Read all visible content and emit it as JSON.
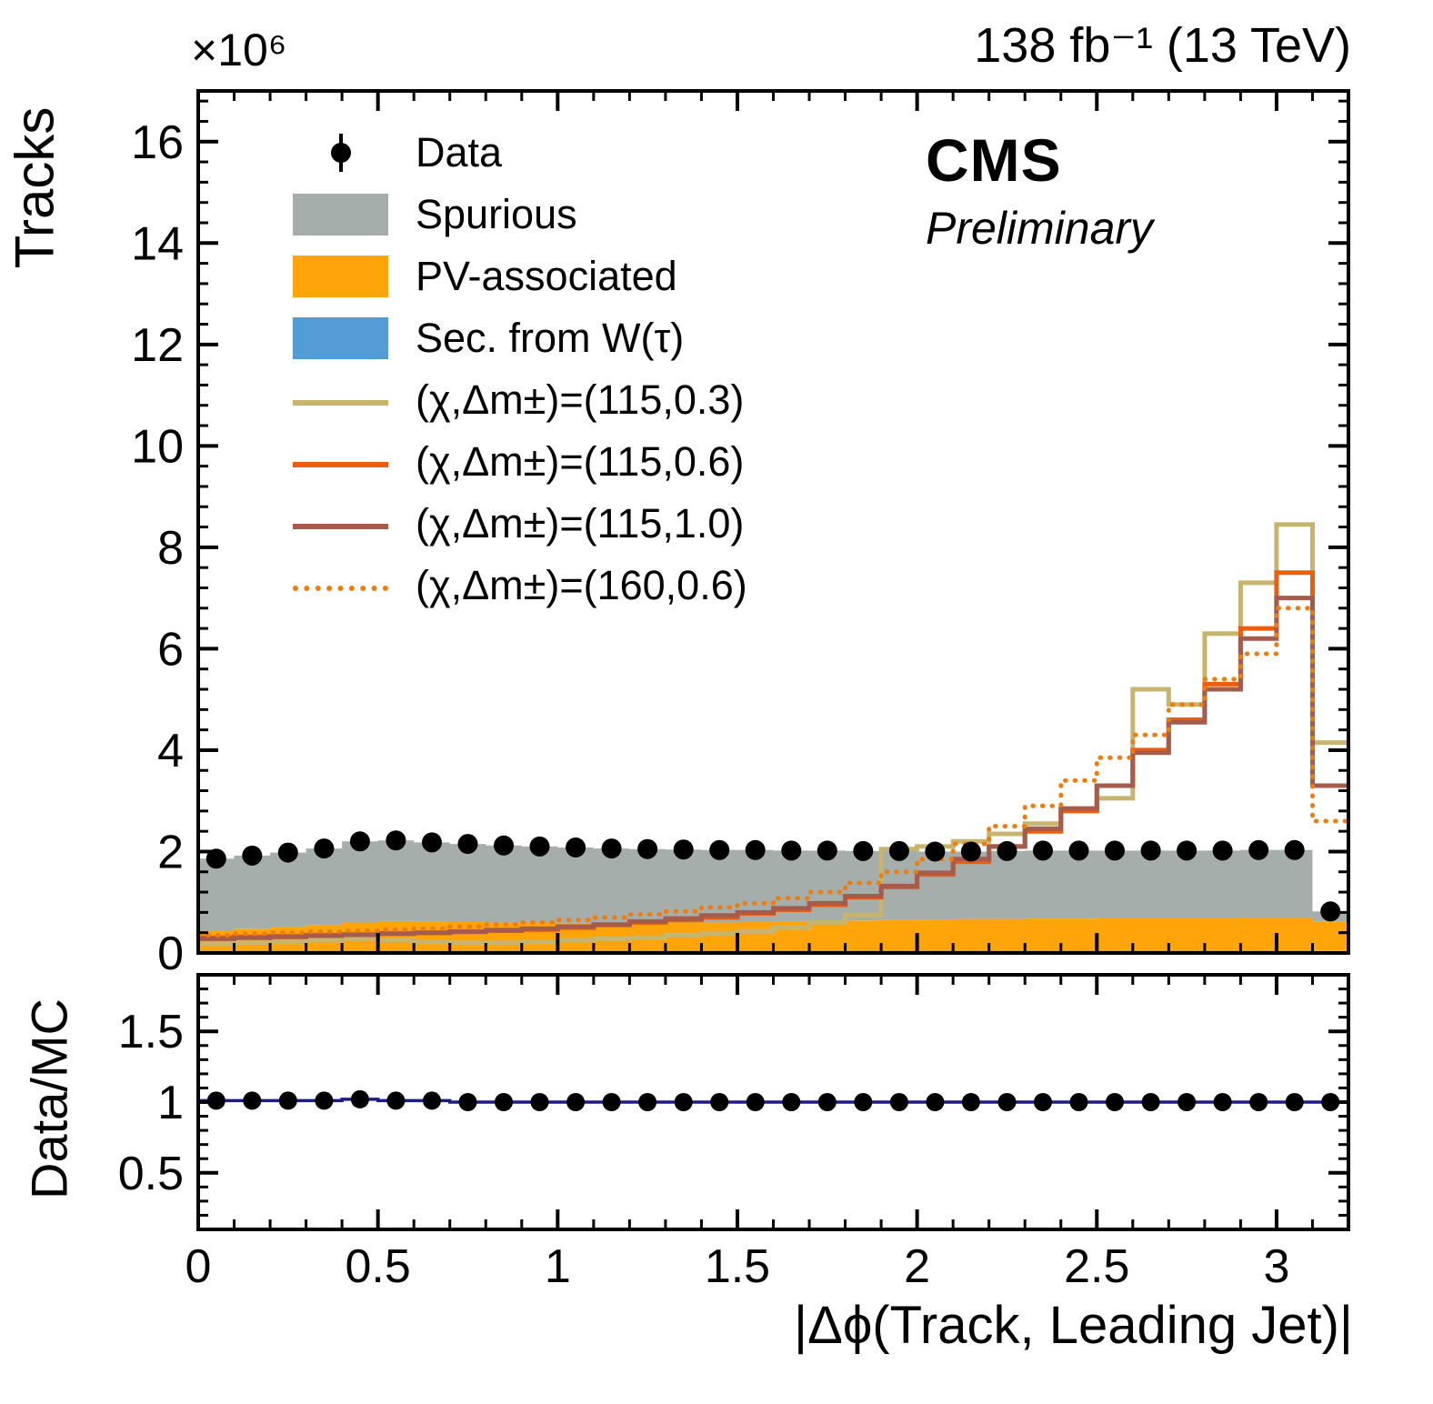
{
  "header": {
    "lumi_text": "138 fb⁻¹ (13 TeV)",
    "experiment": "CMS",
    "experiment_sub": "Preliminary",
    "y_multiplier": "×10⁶"
  },
  "axes": {
    "main_ylabel": "Tracks",
    "ratio_ylabel": "Data/MC",
    "xlabel": "|Δϕ(Track, Leading Jet)|"
  },
  "legend": [
    {
      "label": "Data",
      "type": "marker",
      "color": "#000000"
    },
    {
      "label": "Spurious",
      "type": "fill",
      "color": "#a6aeac"
    },
    {
      "label": "PV-associated",
      "type": "fill",
      "color": "#ffa50a"
    },
    {
      "label": "Sec. from W(τ)",
      "type": "fill",
      "color": "#549cd5"
    },
    {
      "label": "(χ,Δm±)=(115,0.3)",
      "type": "line",
      "color": "#c7b56d"
    },
    {
      "label": "(χ,Δm±)=(115,0.6)",
      "type": "line",
      "color": "#ec5d0e"
    },
    {
      "label": "(χ,Δm±)=(115,1.0)",
      "type": "line",
      "color": "#a55c4c"
    },
    {
      "label": "(χ,Δm±)=(160,0.6)",
      "type": "dotted-line",
      "color": "#ee7d11"
    }
  ],
  "chart_data": {
    "type": "bar",
    "subtype": "stacked-histogram-with-signal-lines-and-ratio",
    "x_range": [
      0,
      3.2
    ],
    "bin_width": 0.1,
    "x_ticks": [
      0,
      0.5,
      1,
      1.5,
      2,
      2.5,
      3
    ],
    "x_tick_labels": [
      "0",
      "0.5",
      "1",
      "1.5",
      "2",
      "2.5",
      "3"
    ],
    "xlabel": "|Δϕ(Track, Leading Jet)|",
    "main": {
      "ylabel": "Tracks",
      "ylim": [
        0,
        17
      ],
      "y_ticks": [
        0,
        2,
        4,
        6,
        8,
        10,
        12,
        14,
        16
      ],
      "unit_exponent": 6,
      "stack": [
        {
          "name": "Sec. from W(tau)",
          "color": "#549cd5",
          "values": [
            0.05,
            0.05,
            0.05,
            0.05,
            0.05,
            0.05,
            0.05,
            0.05,
            0.05,
            0.05,
            0.05,
            0.05,
            0.05,
            0.05,
            0.05,
            0.05,
            0.05,
            0.05,
            0.05,
            0.05,
            0.05,
            0.05,
            0.05,
            0.05,
            0.05,
            0.05,
            0.05,
            0.05,
            0.05,
            0.05,
            0.05,
            0.04
          ]
        },
        {
          "name": "PV-associated",
          "color": "#ffa50a",
          "values": [
            0.38,
            0.42,
            0.46,
            0.5,
            0.55,
            0.58,
            0.57,
            0.56,
            0.55,
            0.55,
            0.54,
            0.54,
            0.53,
            0.55,
            0.55,
            0.56,
            0.57,
            0.58,
            0.59,
            0.6,
            0.61,
            0.62,
            0.62,
            0.63,
            0.63,
            0.64,
            0.64,
            0.64,
            0.64,
            0.65,
            0.65,
            0.58
          ]
        },
        {
          "name": "Spurious",
          "color": "#a6aeac",
          "values": [
            1.43,
            1.45,
            1.47,
            1.51,
            1.6,
            1.59,
            1.56,
            1.54,
            1.52,
            1.5,
            1.49,
            1.47,
            1.47,
            1.44,
            1.43,
            1.42,
            1.4,
            1.39,
            1.37,
            1.36,
            1.34,
            1.33,
            1.34,
            1.34,
            1.34,
            1.33,
            1.33,
            1.33,
            1.33,
            1.33,
            1.33,
            0.2
          ]
        }
      ],
      "signals": [
        {
          "name": "(chi,dm)=(115,0.3)",
          "color": "#c7b56d",
          "style": "solid",
          "values": [
            0.18,
            0.2,
            0.22,
            0.25,
            0.28,
            0.25,
            0.22,
            0.2,
            0.2,
            0.22,
            0.25,
            0.28,
            0.3,
            0.35,
            0.38,
            0.42,
            0.5,
            0.6,
            0.75,
            2.05,
            2.1,
            2.2,
            2.35,
            2.55,
            2.8,
            3.05,
            5.2,
            4.9,
            6.3,
            7.3,
            8.45,
            4.15
          ]
        },
        {
          "name": "(chi,dm)=(115,0.6)",
          "color": "#ec5d0e",
          "style": "solid",
          "values": [
            0.3,
            0.32,
            0.33,
            0.35,
            0.36,
            0.38,
            0.4,
            0.42,
            0.44,
            0.46,
            0.5,
            0.55,
            0.6,
            0.65,
            0.7,
            0.78,
            0.85,
            0.95,
            1.1,
            1.3,
            1.55,
            1.8,
            2.1,
            2.4,
            2.8,
            3.3,
            4.0,
            4.6,
            5.3,
            6.4,
            7.5,
            3.3
          ]
        },
        {
          "name": "(chi,dm)=(115,1.0)",
          "color": "#a55c4c",
          "style": "solid",
          "values": [
            0.28,
            0.3,
            0.32,
            0.34,
            0.36,
            0.38,
            0.4,
            0.42,
            0.45,
            0.48,
            0.52,
            0.56,
            0.62,
            0.68,
            0.74,
            0.8,
            0.88,
            0.98,
            1.12,
            1.32,
            1.58,
            1.85,
            2.1,
            2.45,
            2.85,
            3.3,
            3.95,
            4.55,
            5.2,
            6.2,
            7.0,
            3.3
          ]
        },
        {
          "name": "(chi,dm)=(160,0.6)",
          "color": "#ee7d11",
          "style": "dotted",
          "values": [
            0.35,
            0.38,
            0.4,
            0.42,
            0.44,
            0.46,
            0.48,
            0.52,
            0.56,
            0.6,
            0.65,
            0.7,
            0.76,
            0.82,
            0.9,
            0.98,
            1.08,
            1.2,
            1.38,
            1.6,
            1.85,
            2.15,
            2.5,
            2.9,
            3.4,
            3.85,
            4.3,
            4.9,
            5.4,
            5.9,
            6.8,
            2.6
          ]
        }
      ],
      "data_points": [
        1.86,
        1.92,
        1.98,
        2.06,
        2.2,
        2.22,
        2.18,
        2.15,
        2.12,
        2.1,
        2.08,
        2.06,
        2.05,
        2.04,
        2.03,
        2.03,
        2.02,
        2.02,
        2.01,
        2.01,
        2.0,
        2.0,
        2.01,
        2.02,
        2.02,
        2.02,
        2.02,
        2.02,
        2.02,
        2.03,
        2.03,
        0.82
      ]
    },
    "ratio": {
      "ylabel": "Data/MC",
      "ylim": [
        0.1,
        1.9
      ],
      "y_ticks": [
        0.5,
        1,
        1.5
      ],
      "y_tick_labels": [
        "0.5",
        "1",
        "1.5"
      ],
      "line_color": "#1c1c84",
      "line_values": [
        1.01,
        1.01,
        1.01,
        1.01,
        1.02,
        1.01,
        1.01,
        1.0,
        1.0,
        1.0,
        1.0,
        1.0,
        1.0,
        1.0,
        1.0,
        1.0,
        1.0,
        1.0,
        1.0,
        1.0,
        1.0,
        1.0,
        1.0,
        1.0,
        1.0,
        1.0,
        1.0,
        1.0,
        1.0,
        1.0,
        1.0,
        1.0
      ],
      "points": [
        1.01,
        1.01,
        1.01,
        1.01,
        1.02,
        1.01,
        1.01,
        1.0,
        1.0,
        1.0,
        1.0,
        1.0,
        1.0,
        1.0,
        1.0,
        1.0,
        1.0,
        1.0,
        1.0,
        1.0,
        1.0,
        1.0,
        1.0,
        1.0,
        1.0,
        1.0,
        1.0,
        1.0,
        1.0,
        1.0,
        1.0,
        1.0
      ]
    }
  }
}
